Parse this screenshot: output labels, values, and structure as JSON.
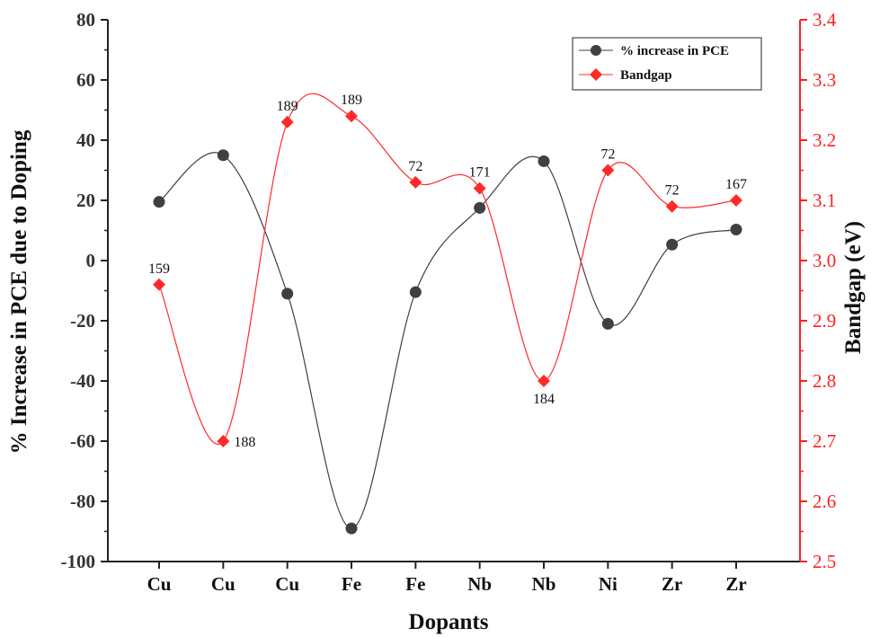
{
  "chart_data": {
    "type": "line",
    "title": "",
    "xlabel": "Dopants",
    "ylabel_left": "% Increase in PCE due to Doping",
    "ylabel_right": "Bandgap (eV)",
    "categories": [
      "Cu",
      "Cu",
      "Cu",
      "Fe",
      "Fe",
      "Nb",
      "Nb",
      "Ni",
      "Zr",
      "Zr"
    ],
    "ylim_left": [
      -100,
      80
    ],
    "yticks_left": [
      -100,
      -80,
      -60,
      -40,
      -20,
      0,
      20,
      40,
      60,
      80
    ],
    "ylim_right": [
      2.5,
      3.4
    ],
    "yticks_right": [
      "2.5",
      "2.6",
      "2.7",
      "2.8",
      "2.9",
      "3.0",
      "3.1",
      "3.2",
      "3.3",
      "3.4"
    ],
    "grid": false,
    "legend_position": "top-right",
    "series": [
      {
        "name": "% increase in PCE",
        "axis": "left",
        "color": "#404040",
        "marker": "circle",
        "values": [
          19.5,
          35,
          -11,
          -89,
          -10.5,
          17.5,
          33,
          -21,
          5.3,
          10.3
        ]
      },
      {
        "name": "Bandgap",
        "axis": "right",
        "color": "#ff2a2a",
        "marker": "diamond",
        "values": [
          2.96,
          2.7,
          3.23,
          3.24,
          3.13,
          3.12,
          2.8,
          3.15,
          3.09,
          3.1
        ],
        "point_labels": [
          "159",
          "188",
          "189",
          "189",
          "72",
          "171",
          "184",
          "72",
          "72",
          "167"
        ]
      }
    ]
  }
}
